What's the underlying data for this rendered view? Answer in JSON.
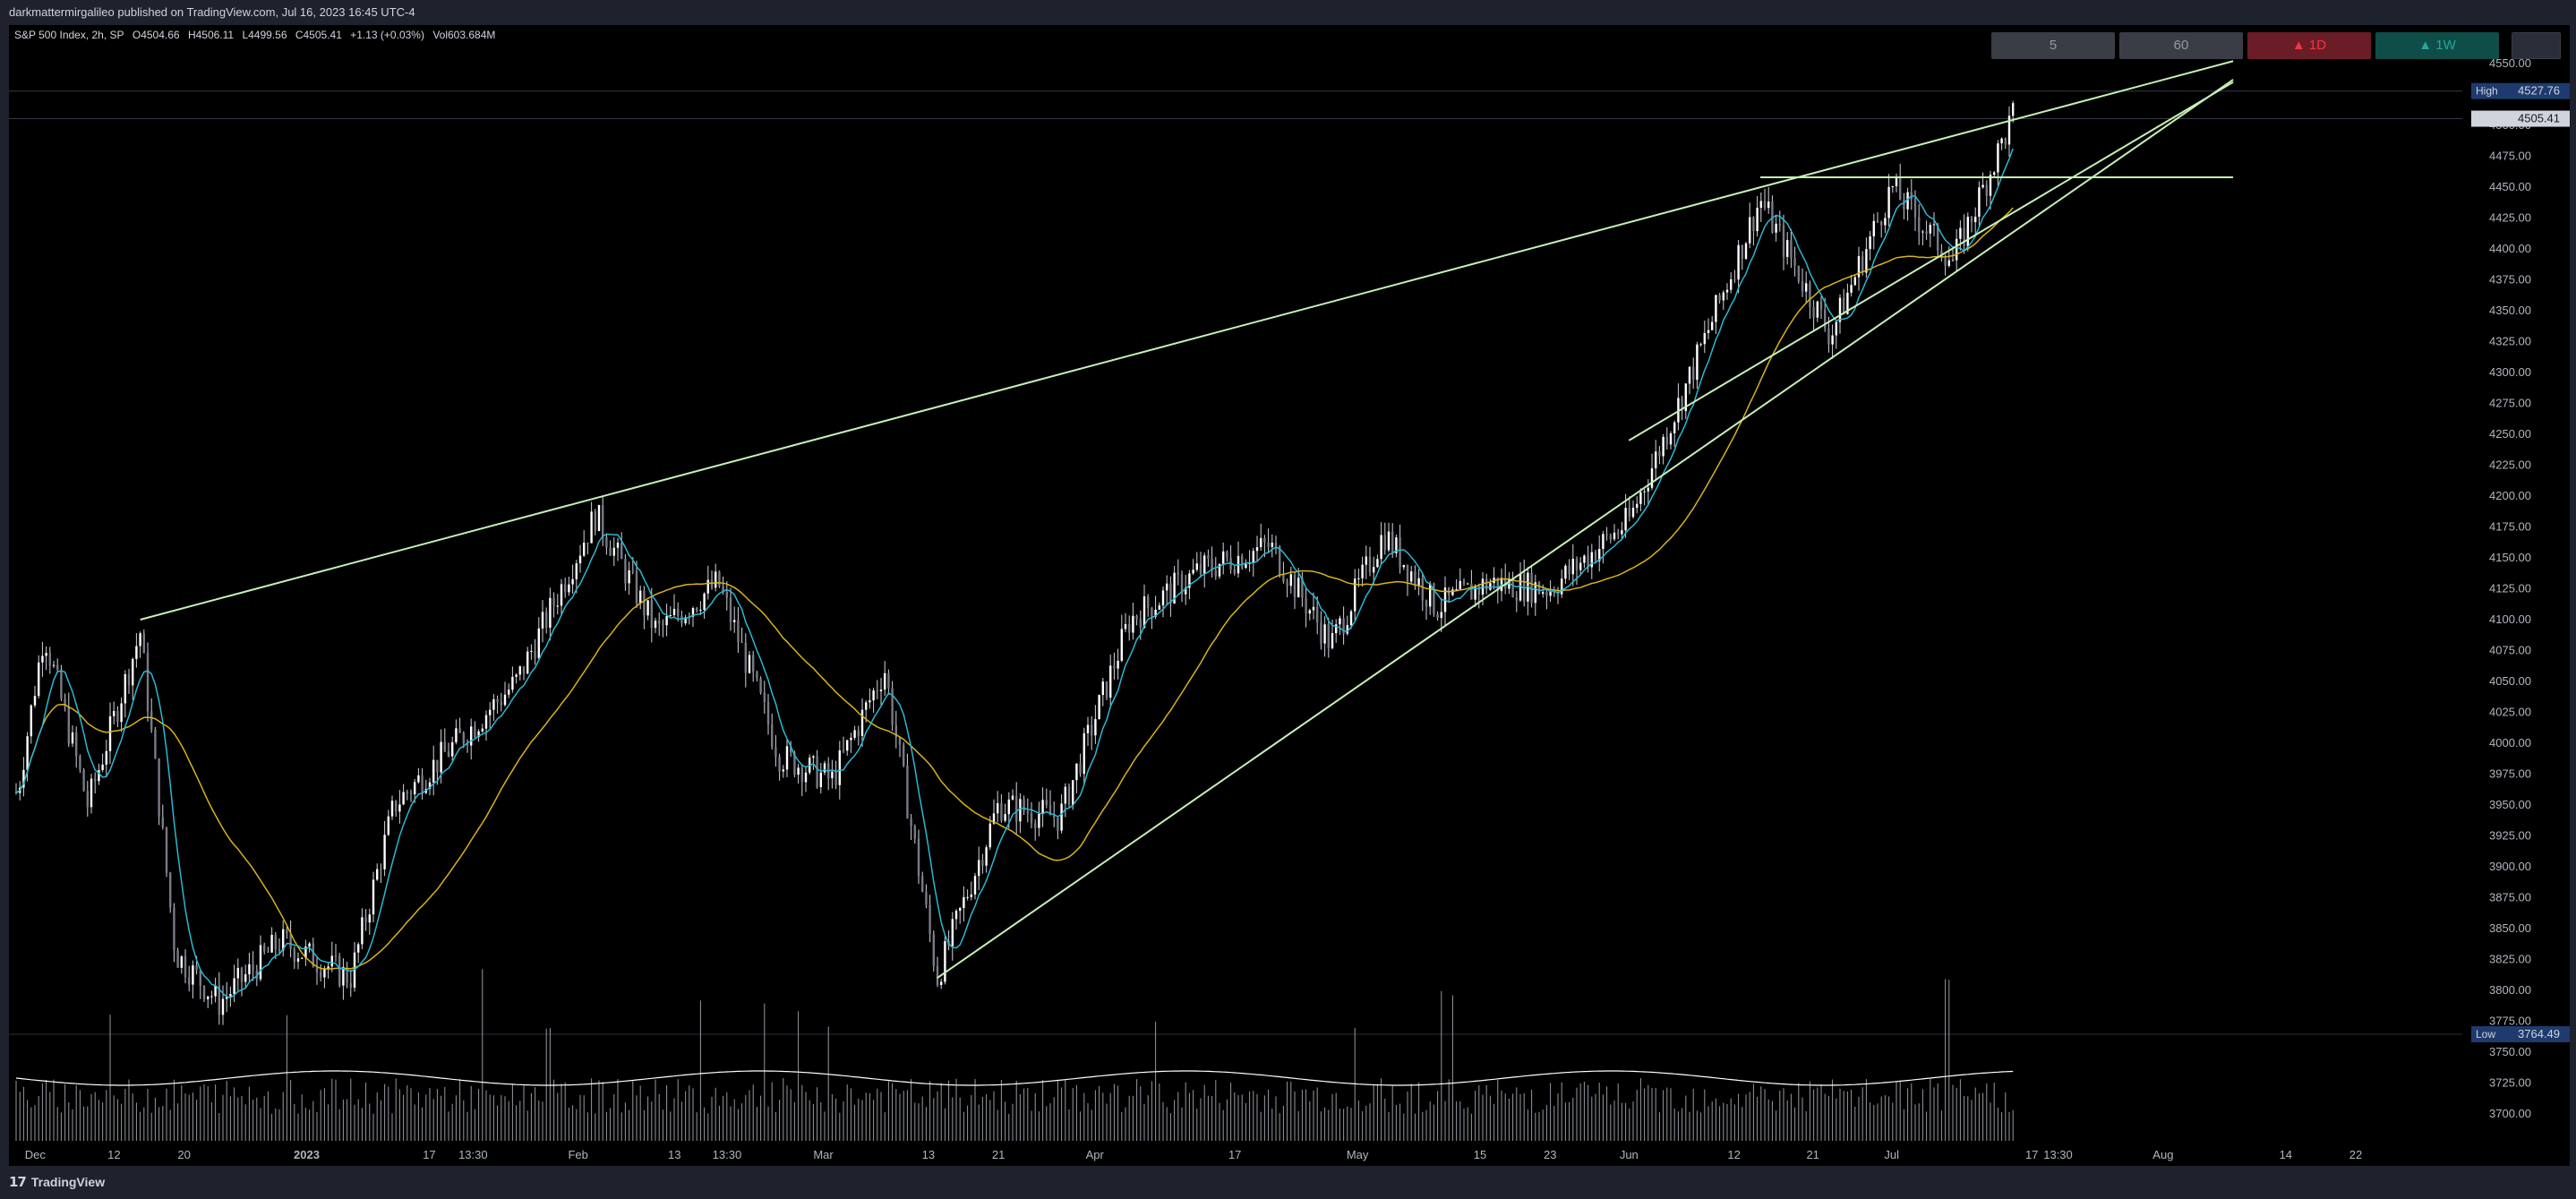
{
  "header": {
    "published_by": "darkmattermirgalileo published on TradingView.com, Jul 16, 2023 16:45 UTC-4"
  },
  "legend": {
    "symbol": "S&P 500 Index, 2h, SP",
    "open": "O4504.66",
    "high": "H4506.11",
    "low": "L4499.56",
    "close": "C4505.41",
    "change": "+1.13 (+0.03%)",
    "volume": "Vol603.684M"
  },
  "timeframes": {
    "tf1": "5",
    "tf2": "60",
    "tf3": "▲ 1D",
    "tf4": "▲ 1W"
  },
  "price_scale": {
    "ticks": [
      "4550.00",
      "4525.00",
      "4500.00",
      "4475.00",
      "4450.00",
      "4425.00",
      "4400.00",
      "4375.00",
      "4350.00",
      "4325.00",
      "4300.00",
      "4275.00",
      "4250.00",
      "4225.00",
      "4200.00",
      "4175.00",
      "4150.00",
      "4125.00",
      "4100.00",
      "4075.00",
      "4050.00",
      "4025.00",
      "4000.00",
      "3975.00",
      "3950.00",
      "3925.00",
      "3900.00",
      "3875.00",
      "3850.00",
      "3825.00",
      "3800.00",
      "3775.00",
      "3750.00",
      "3725.00",
      "3700.00"
    ],
    "high_label": "High",
    "high_value": "4527.76",
    "last_value": "4505.41",
    "low_label": "Low",
    "low_value": "3764.49"
  },
  "time_axis": [
    "Dec",
    "12",
    "20",
    "2023",
    "17",
    "13:30",
    "Feb",
    "13",
    "13:30",
    "Mar",
    "13",
    "21",
    "Apr",
    "17",
    "May",
    "15",
    "23",
    "Jun",
    "12",
    "21",
    "Jul",
    "17",
    "13:30",
    "Aug",
    "14",
    "22"
  ],
  "footer": {
    "brand": "TradingView"
  },
  "colors": {
    "background": "#000000",
    "trendline": "#c5f0b5",
    "ma_fast": "#2bb7d3",
    "ma_slow": "#d9b21a",
    "volume": "#d1d4dc",
    "candle": "#d1d4dc"
  },
  "chart_data": {
    "type": "line",
    "title": "S&P 500 Index, 2h, SP",
    "x": [
      "Nov 28",
      "Dec 1",
      "Dec 6",
      "Dec 12",
      "Dec 16",
      "Dec 21",
      "Dec 28",
      "Jan 5",
      "Jan 10",
      "Jan 17",
      "Jan 24",
      "Feb 2",
      "Feb 9",
      "Feb 16",
      "Feb 23",
      "Mar 1",
      "Mar 7",
      "Mar 13",
      "Mar 20",
      "Mar 27",
      "Apr 4",
      "Apr 12",
      "Apr 20",
      "Apr 27",
      "May 3",
      "May 9",
      "May 15",
      "May 22",
      "May 31",
      "Jun 6",
      "Jun 15",
      "Jun 23",
      "Jun 30",
      "Jul 7",
      "Jul 14"
    ],
    "series": [
      {
        "values": [
          3960,
          4090,
          3950,
          4090,
          3830,
          3790,
          3840,
          3810,
          3950,
          4000,
          4050,
          4185,
          4090,
          4130,
          3990,
          3970,
          4060,
          3810,
          3950,
          3940,
          4100,
          4140,
          4160,
          4080,
          4170,
          4110,
          4130,
          4125,
          4180,
          4280,
          4440,
          4330,
          4450,
          4390,
          4510
        ]
      }
    ],
    "trendlines": [
      {
        "from": [
          "Dec 12",
          4100
        ],
        "to": [
          "Aug 8",
          4552
        ]
      },
      {
        "from": [
          "Mar 13",
          3810
        ],
        "to": [
          "Aug 8",
          4537
        ]
      },
      {
        "from": [
          "May 31",
          4245
        ],
        "to": [
          "Aug 8",
          4535
        ]
      },
      {
        "from": [
          "Jun 15",
          4458
        ],
        "to": [
          "Aug 8",
          4458
        ]
      }
    ],
    "ylim": [
      3690,
      4565
    ]
  }
}
